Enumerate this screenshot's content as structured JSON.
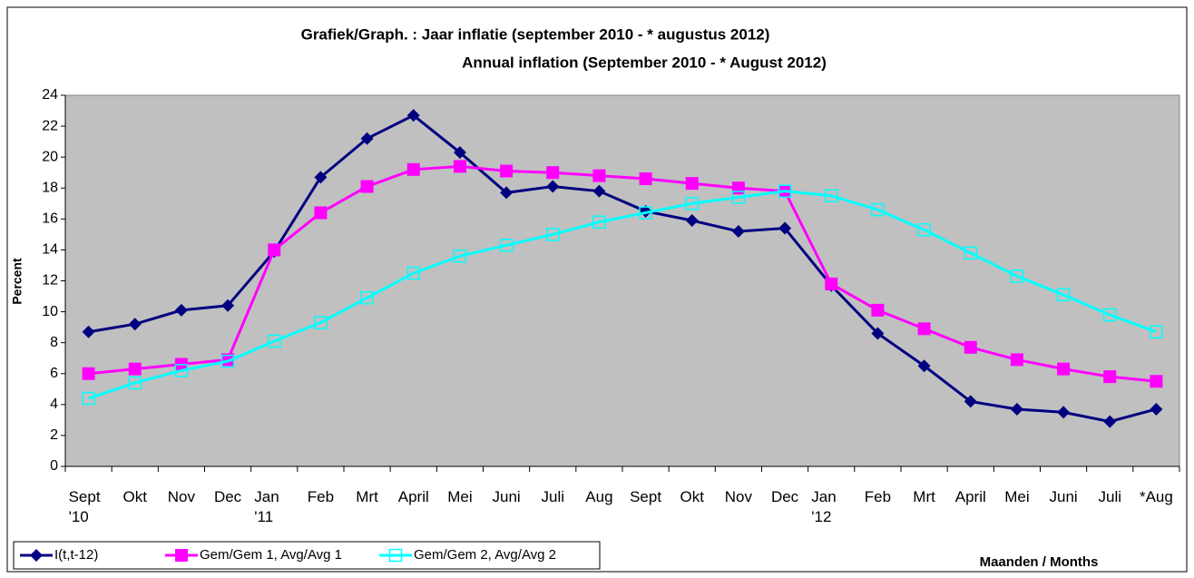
{
  "chart_data": {
    "type": "line",
    "title": "Grafiek/Graph. :  Jaar inflatie  (september 2010 -  * augustus 2012)",
    "subtitle": "Annual inflation (September  2010 -  * August 2012)",
    "y_label": "Percent",
    "x_label": "Maanden / Months",
    "categories": [
      "Sept\n'10",
      "Okt",
      "Nov",
      "Dec",
      "Jan\n'11",
      "Feb",
      "Mrt",
      "April",
      "Mei",
      "Juni",
      "Juli",
      "Aug",
      "Sept",
      "Okt",
      "Nov",
      "Dec",
      "Jan\n'12",
      "Feb",
      "Mrt",
      "April",
      "Mei",
      "Juni",
      "Juli",
      "*Aug"
    ],
    "series": [
      {
        "name": "I(t,t-12)",
        "color": "#000080",
        "marker": "diamond",
        "values": [
          8.7,
          9.2,
          10.1,
          10.4,
          13.9,
          18.7,
          21.2,
          22.7,
          20.3,
          17.7,
          18.1,
          17.8,
          16.5,
          15.9,
          15.2,
          15.4,
          11.7,
          8.6,
          6.5,
          4.2,
          3.7,
          3.5,
          2.9,
          3.7
        ]
      },
      {
        "name": "Gem/Gem 1, Avg/Avg 1",
        "color": "#ff00ff",
        "marker": "square",
        "values": [
          6.0,
          6.3,
          6.6,
          6.9,
          14.0,
          16.4,
          18.1,
          19.2,
          19.4,
          19.1,
          19.0,
          18.8,
          18.6,
          18.3,
          18.0,
          17.8,
          11.8,
          10.1,
          8.9,
          7.7,
          6.9,
          6.3,
          5.8,
          5.5
        ]
      },
      {
        "name": "Gem/Gem 2, Avg/Avg 2",
        "color": "#00ffff",
        "marker": "open-square",
        "values": [
          4.4,
          5.4,
          6.2,
          6.8,
          8.1,
          9.3,
          10.9,
          12.5,
          13.6,
          14.3,
          15.0,
          15.8,
          16.4,
          17.0,
          17.4,
          17.8,
          17.5,
          16.6,
          15.3,
          13.8,
          12.3,
          11.1,
          9.8,
          8.7
        ]
      }
    ],
    "ylim": [
      0,
      24
    ],
    "yticks": [
      0,
      2,
      4,
      6,
      8,
      10,
      12,
      14,
      16,
      18,
      20,
      22,
      24
    ],
    "grid": false,
    "plot_background": "#c0c0c0",
    "legend": "bottom-left"
  }
}
